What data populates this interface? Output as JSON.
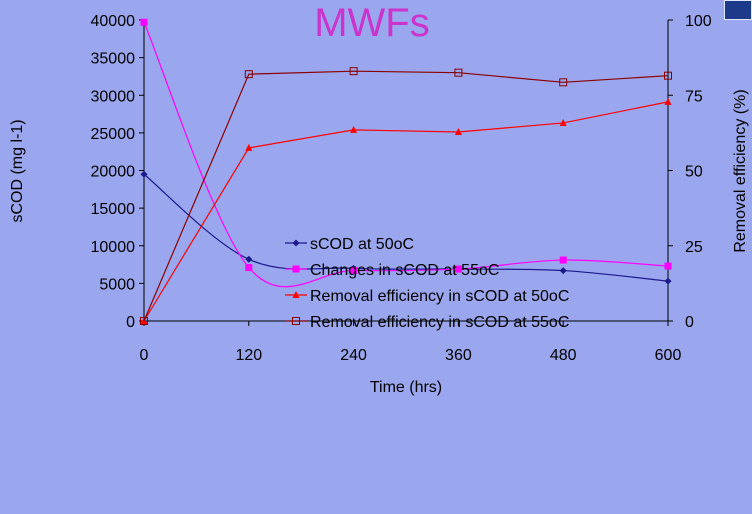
{
  "chart_data": {
    "type": "line",
    "title": "MWFs",
    "xlabel": "Time (hrs)",
    "ylabel_left": "sCOD (mg l-1)",
    "ylabel_right": "Removal efficiency (%)",
    "x": [
      0,
      120,
      240,
      360,
      480,
      600
    ],
    "x_ticks": [
      "0",
      "120",
      "240",
      "360",
      "480",
      "600"
    ],
    "xlim": [
      0,
      600
    ],
    "ylim_left": [
      0,
      40000
    ],
    "ylim_right": [
      0,
      100
    ],
    "y_ticks_left": [
      "0",
      "5000",
      "10000",
      "15000",
      "20000",
      "25000",
      "30000",
      "35000",
      "40000"
    ],
    "y_ticks_right": [
      "0",
      "25",
      "50",
      "75",
      "100"
    ],
    "legend_position": "center-right",
    "grid": false,
    "series": [
      {
        "name": "sCOD at 50oC",
        "axis": "left",
        "color": "#1a1a8c",
        "marker": "diamond",
        "smooth": true,
        "values": [
          19500,
          8200,
          7000,
          6900,
          6700,
          5300
        ]
      },
      {
        "name": "Changes in sCOD at 55oC",
        "axis": "left",
        "color": "#ff00ff",
        "marker": "square",
        "smooth": true,
        "values": [
          39700,
          7100,
          6700,
          6900,
          8100,
          7300
        ]
      },
      {
        "name": "Removal efficiency in sCOD at 50oC",
        "axis": "right",
        "color": "#ff0000",
        "marker": "triangle",
        "smooth": false,
        "values": [
          0,
          57.5,
          63.5,
          62.8,
          65.8,
          72.8
        ]
      },
      {
        "name": "Removal efficiency in sCOD at 55oC",
        "axis": "right",
        "color": "#8b0000",
        "marker": "open-square",
        "smooth": false,
        "values": [
          0,
          82,
          83,
          82.5,
          79.3,
          81.5
        ]
      }
    ]
  }
}
